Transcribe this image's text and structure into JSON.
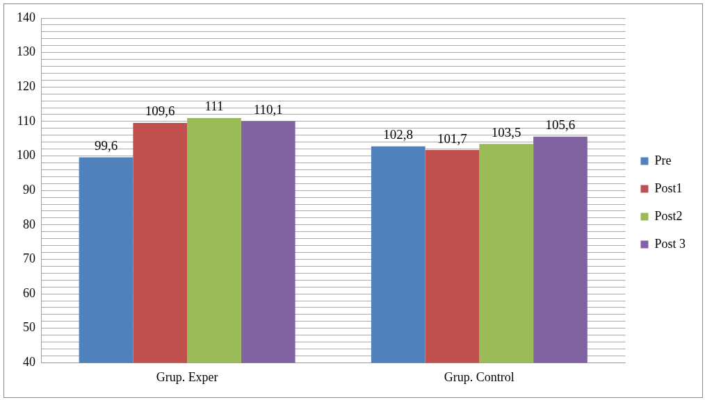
{
  "chart_data": {
    "type": "bar",
    "categories": [
      "Grup. Exper",
      "Grup. Control"
    ],
    "series": [
      {
        "name": "Pre",
        "color": "#4f81bd",
        "values": [
          99.6,
          102.8
        ],
        "value_labels": [
          "99,6",
          "102,8"
        ]
      },
      {
        "name": "Post1",
        "color": "#c0504d",
        "values": [
          109.6,
          101.7
        ],
        "value_labels": [
          "109,6",
          "101,7"
        ]
      },
      {
        "name": "Post2",
        "color": "#9bbb59",
        "values": [
          111,
          103.5
        ],
        "value_labels": [
          "111",
          "103,5"
        ]
      },
      {
        "name": "Post 3",
        "color": "#8064a2",
        "values": [
          110.1,
          105.6
        ],
        "value_labels": [
          "110,1",
          "105,6"
        ]
      }
    ],
    "ylim": [
      40,
      140
    ],
    "yticks": [
      40,
      {
        "value": 42,
        "label": null
      },
      {
        "value": 44,
        "label": null
      },
      {
        "value": 46,
        "label": null
      },
      {
        "value": 48,
        "label": null
      },
      50,
      {
        "value": 52,
        "label": null
      },
      {
        "value": 54,
        "label": null
      },
      {
        "value": 56,
        "label": null
      },
      {
        "value": 58,
        "label": null
      },
      60,
      {
        "value": 62,
        "label": null
      },
      {
        "value": 64,
        "label": null
      },
      {
        "value": 66,
        "label": null
      },
      {
        "value": 68,
        "label": null
      },
      70,
      {
        "value": 72,
        "label": null
      },
      {
        "value": 74,
        "label": null
      },
      {
        "value": 76,
        "label": null
      },
      {
        "value": 78,
        "label": null
      },
      80,
      {
        "value": 82,
        "label": null
      },
      {
        "value": 84,
        "label": null
      },
      {
        "value": 86,
        "label": null
      },
      {
        "value": 88,
        "label": null
      },
      90,
      {
        "value": 92,
        "label": null
      },
      {
        "value": 94,
        "label": null
      },
      {
        "value": 96,
        "label": null
      },
      {
        "value": 98,
        "label": null
      },
      100,
      {
        "value": 102,
        "label": null
      },
      {
        "value": 104,
        "label": null
      },
      {
        "value": 106,
        "label": null
      },
      {
        "value": 108,
        "label": null
      },
      110,
      {
        "value": 112,
        "label": null
      },
      {
        "value": 114,
        "label": null
      },
      {
        "value": 116,
        "label": null
      },
      {
        "value": 118,
        "label": null
      },
      120,
      {
        "value": 122,
        "label": null
      },
      {
        "value": 124,
        "label": null
      },
      {
        "value": 126,
        "label": null
      },
      {
        "value": 128,
        "label": null
      },
      130,
      {
        "value": 132,
        "label": null
      },
      {
        "value": 134,
        "label": null
      },
      {
        "value": 136,
        "label": null
      },
      {
        "value": 138,
        "label": null
      },
      140
    ],
    "grid": "y",
    "legend": "right"
  }
}
